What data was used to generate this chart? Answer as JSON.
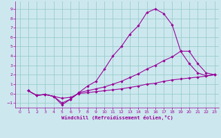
{
  "xlabel": "Windchill (Refroidissement éolien,°C)",
  "bg_color": "#cce8ee",
  "line_color": "#990099",
  "grid_color": "#99cccc",
  "xlim": [
    -0.5,
    23.5
  ],
  "ylim": [
    -1.5,
    9.8
  ],
  "xticks": [
    0,
    1,
    2,
    3,
    4,
    5,
    6,
    7,
    8,
    9,
    10,
    11,
    12,
    13,
    14,
    15,
    16,
    17,
    18,
    19,
    20,
    21,
    22,
    23
  ],
  "yticks": [
    -1,
    0,
    1,
    2,
    3,
    4,
    5,
    6,
    7,
    8,
    9
  ],
  "line1_x": [
    1,
    2,
    3,
    4,
    5,
    6,
    7,
    8,
    9,
    10,
    11,
    12,
    13,
    14,
    15,
    16,
    17,
    18,
    19,
    20,
    21,
    22,
    23
  ],
  "line1_y": [
    0.3,
    -0.2,
    -0.1,
    -0.3,
    -1.2,
    -0.6,
    0.1,
    0.8,
    1.3,
    2.6,
    4.0,
    5.0,
    6.3,
    7.2,
    8.6,
    9.0,
    8.5,
    7.3,
    4.5,
    3.2,
    2.2,
    1.9,
    2.0
  ],
  "line2_x": [
    1,
    2,
    3,
    4,
    5,
    6,
    7,
    8,
    9,
    10,
    11,
    12,
    13,
    14,
    15,
    16,
    17,
    18,
    19,
    20,
    21,
    22,
    23
  ],
  "line2_y": [
    0.3,
    -0.2,
    -0.1,
    -0.3,
    -1.0,
    -0.6,
    0.1,
    0.3,
    0.5,
    0.7,
    1.0,
    1.3,
    1.7,
    2.1,
    2.6,
    3.0,
    3.5,
    3.9,
    4.5,
    4.5,
    3.2,
    2.2,
    2.0
  ],
  "line3_x": [
    1,
    2,
    3,
    4,
    5,
    6,
    7,
    8,
    9,
    10,
    11,
    12,
    13,
    14,
    15,
    16,
    17,
    18,
    19,
    20,
    21,
    22,
    23
  ],
  "line3_y": [
    0.3,
    -0.2,
    -0.1,
    -0.3,
    -0.5,
    -0.4,
    0.0,
    0.1,
    0.2,
    0.3,
    0.4,
    0.5,
    0.65,
    0.8,
    1.0,
    1.1,
    1.3,
    1.45,
    1.55,
    1.65,
    1.75,
    1.85,
    2.0
  ]
}
